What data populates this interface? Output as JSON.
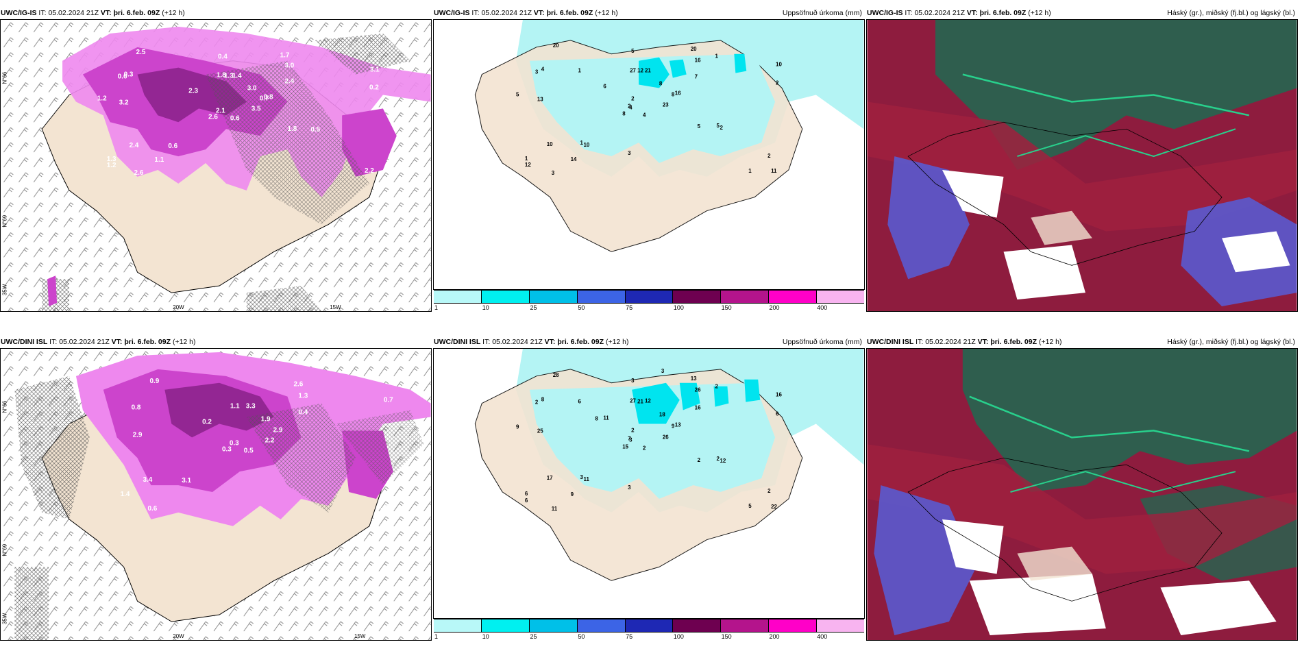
{
  "panels": [
    {
      "model": "UWC/IG-IS",
      "it_label": "IT:",
      "it": "05.02.2024 21Z",
      "vt_label": "VT:",
      "vt": "þri. 6.feb. 09Z",
      "lead": "(+12 h)",
      "right": ""
    },
    {
      "model": "UWC/IG-IS",
      "it_label": "IT:",
      "it": "05.02.2024 21Z",
      "vt_label": "VT:",
      "vt": "þri. 6.feb. 09Z",
      "lead": "(+12 h)",
      "right": "Uppsöfnuð úrkoma (mm)"
    },
    {
      "model": "UWC/IG-IS",
      "it_label": "IT:",
      "it": "05.02.2024 21Z",
      "vt_label": "VT:",
      "vt": "þri. 6.feb. 09Z",
      "lead": "(+12 h)",
      "right": "Háský (gr.), miðský (fj.bl.) og lágský (bl.)"
    },
    {
      "model": "UWC/DINI ISL",
      "it_label": "IT:",
      "it": "05.02.2024 21Z",
      "vt_label": "VT:",
      "vt": "þri. 6.feb. 09Z",
      "lead": "(+12 h)",
      "right": ""
    },
    {
      "model": "UWC/DINI ISL",
      "it_label": "IT:",
      "it": "05.02.2024 21Z",
      "vt_label": "VT:",
      "vt": "þri. 6.feb. 09Z",
      "lead": "(+12 h)",
      "right": "Uppsöfnuð úrkoma (mm)"
    },
    {
      "model": "UWC/DINI ISL",
      "it_label": "IT:",
      "it": "05.02.2024 21Z",
      "vt_label": "VT:",
      "vt": "þri. 6.feb. 09Z",
      "lead": "(+12 h)",
      "right": "Háský (gr.), miðský (fj.bl.) og lágský (bl.)"
    }
  ],
  "colorbar": {
    "ticks": [
      "1",
      "10",
      "25",
      "50",
      "75",
      "100",
      "150",
      "200",
      "400"
    ],
    "colors": [
      "#b8f8f8",
      "#00f0f0",
      "#00c0e8",
      "#3c64e6",
      "#1e28b4",
      "#6e0050",
      "#b4148c",
      "#ff00c8",
      "#f8b4f0"
    ]
  },
  "axis_labels": {
    "top_left": [
      "N°66",
      "N°69",
      "35W",
      "20W",
      "15W"
    ],
    "bottom_left": [
      "N°66",
      "N°69",
      "35W",
      "20W",
      "15W"
    ]
  },
  "snow_values_top": [
    "0.6",
    "0.6",
    "2.1",
    "1.3",
    "0.7",
    "0.6",
    "1.7",
    "1.4",
    "3.0",
    "3.5",
    "2.5",
    "2.2",
    "3.2",
    "3.1",
    "2.6",
    "2.4",
    "2.6",
    "1.8",
    "3.0",
    "2.4",
    "2.3",
    "1.2",
    "1.1",
    "1.3",
    "0.8",
    "0.5",
    "0.3",
    "0.4",
    "1.2",
    "1.8",
    "0.2"
  ],
  "snow_values_bottom": [
    "0.5",
    "0.8",
    "0.3",
    "1.4",
    "2.9",
    "3.1",
    "2.6",
    "3.3",
    "1.3",
    "2.2",
    "0.9",
    "1.3",
    "2.9",
    "0.7",
    "0.3",
    "0.4",
    "0.6",
    "1.1",
    "1.9",
    "3.4",
    "0.2"
  ],
  "precip_values_top": [
    "4",
    "3",
    "4",
    "1",
    "8",
    "10",
    "20",
    "21",
    "16",
    "23",
    "20",
    "11",
    "13",
    "10",
    "8",
    "7",
    "3",
    "27",
    "8",
    "10",
    "6",
    "12",
    "14",
    "12",
    "16",
    "2",
    "4",
    "5",
    "5",
    "5",
    "2",
    "2",
    "3",
    "2",
    "1",
    "1",
    "1",
    "1",
    "2",
    "5"
  ],
  "precip_values_bottom": [
    "2",
    "2",
    "3",
    "6",
    "9",
    "11",
    "13",
    "12",
    "26",
    "26",
    "28",
    "22",
    "25",
    "16",
    "15",
    "16",
    "11",
    "27",
    "18",
    "17",
    "11",
    "6",
    "9",
    "21",
    "13",
    "12",
    "8",
    "3",
    "9",
    "2",
    "6",
    "7",
    "3",
    "2",
    "6",
    "2",
    "3",
    "5",
    "2",
    "2",
    "3",
    "8"
  ],
  "colors": {
    "land": "#f3e4d2",
    "sea": "#ffffff",
    "snow_dark": "#7a1a7a",
    "snow_mid": "#cc44cc",
    "snow_light": "#ee88ee",
    "precip_light": "#b4f4f4",
    "precip_cyan": "#00e4ef",
    "cloud_high": "#2f5e4e",
    "cloud_mid": "#8e1c3e",
    "cloud_low": "#5a5acf"
  }
}
